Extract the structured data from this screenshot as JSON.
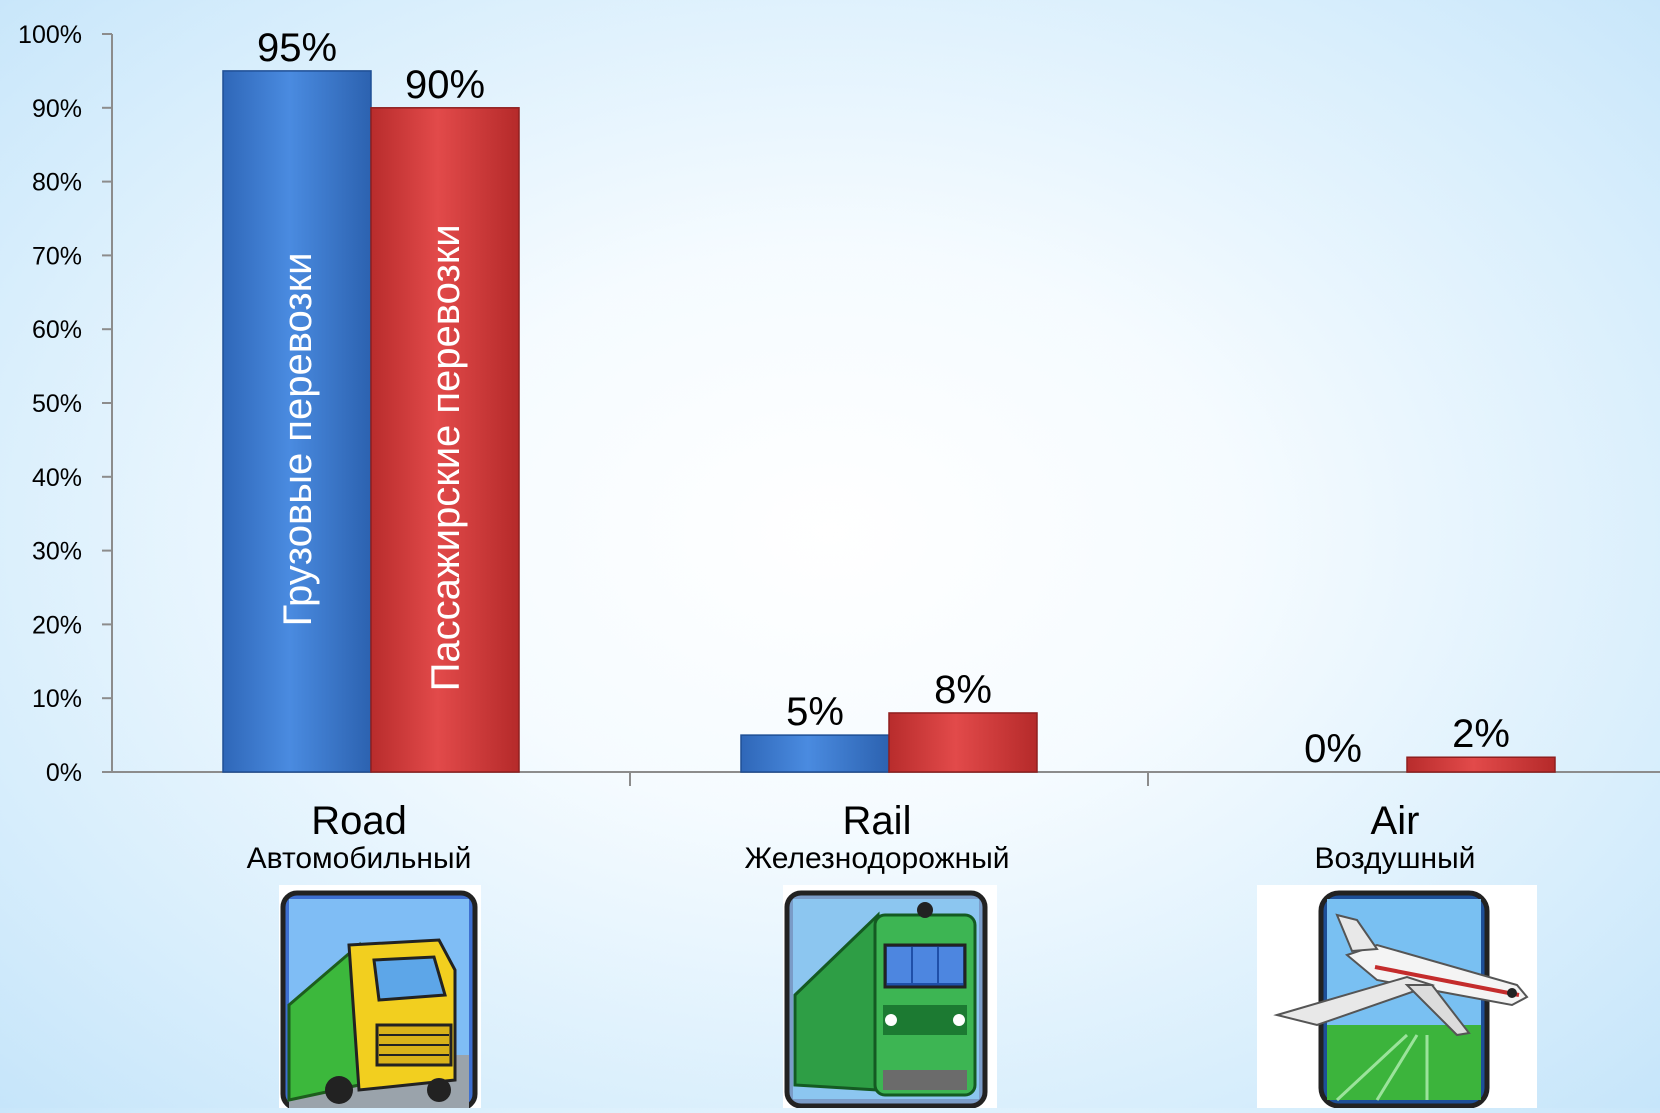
{
  "chart_data": {
    "type": "bar",
    "categories": [
      "Road",
      "Rail",
      "Air"
    ],
    "category_subtitles": [
      "Автомобильный",
      "Железнодорожный",
      "Воздушный"
    ],
    "series": [
      {
        "name": "Грузовые перевозки",
        "values": [
          95,
          5,
          0
        ],
        "color": "#3a7bd5",
        "labels": [
          "95%",
          "5%",
          "0%"
        ]
      },
      {
        "name": "Пассажирские перевозки",
        "values": [
          90,
          8,
          2
        ],
        "color": "#d93d3d",
        "labels": [
          "90%",
          "8%",
          "2%"
        ]
      }
    ],
    "y_ticks": [
      "0%",
      "10%",
      "20%",
      "30%",
      "40%",
      "50%",
      "60%",
      "70%",
      "80%",
      "90%",
      "100%"
    ],
    "ylim": [
      0,
      100
    ],
    "grid": false,
    "legend": "series names written vertically inside the Road bars"
  },
  "icons": [
    {
      "name": "truck-icon",
      "category": "Road"
    },
    {
      "name": "train-icon",
      "category": "Rail"
    },
    {
      "name": "airplane-icon",
      "category": "Air"
    }
  ]
}
